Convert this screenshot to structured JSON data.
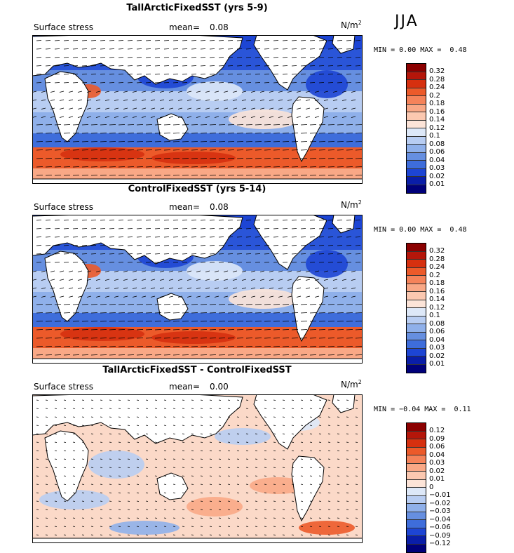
{
  "season": "JJA",
  "panels": [
    {
      "title": "TallArcticFixedSST (yrs 5-9)",
      "field": "Surface stress",
      "mean_label": "mean=",
      "mean_value": "0.08",
      "units": "N/m",
      "units_exp": "2",
      "min_label": "MIN =",
      "min_value": "0.00",
      "max_label": "MAX =",
      "max_value": "0.48",
      "colorbar": [
        "0.32",
        "0.28",
        "0.24",
        "0.2",
        "0.18",
        "0.16",
        "0.14",
        "0.12",
        "0.1",
        "0.08",
        "0.06",
        "0.04",
        "0.03",
        "0.02",
        "0.01"
      ],
      "colors": [
        "#8b0000",
        "#b5160a",
        "#d6300f",
        "#ec5a2a",
        "#f5835a",
        "#f9a886",
        "#fbc8b0",
        "#fce4d8",
        "#dde8f8",
        "#b8cdf2",
        "#8fb0ea",
        "#668fe0",
        "#3e6ddb",
        "#1d45d4",
        "#0a1ea8",
        "#00007a"
      ]
    },
    {
      "title": "ControlFixedSST (yrs 5-14)",
      "field": "Surface stress",
      "mean_label": "mean=",
      "mean_value": "0.08",
      "units": "N/m",
      "units_exp": "2",
      "min_label": "MIN =",
      "min_value": "0.00",
      "max_label": "MAX =",
      "max_value": "0.48",
      "colorbar": [
        "0.32",
        "0.28",
        "0.24",
        "0.2",
        "0.18",
        "0.16",
        "0.14",
        "0.12",
        "0.1",
        "0.08",
        "0.06",
        "0.04",
        "0.03",
        "0.02",
        "0.01"
      ],
      "colors": [
        "#8b0000",
        "#b5160a",
        "#d6300f",
        "#ec5a2a",
        "#f5835a",
        "#f9a886",
        "#fbc8b0",
        "#fce4d8",
        "#dde8f8",
        "#b8cdf2",
        "#8fb0ea",
        "#668fe0",
        "#3e6ddb",
        "#1d45d4",
        "#0a1ea8",
        "#00007a"
      ]
    },
    {
      "title": "TallArcticFixedSST - ControlFixedSST",
      "field": "Surface stress",
      "mean_label": "mean=",
      "mean_value": "0.00",
      "units": "N/m",
      "units_exp": "2",
      "min_label": "MIN =",
      "min_value": "−0.04",
      "max_label": "MAX =",
      "max_value": "0.11",
      "colorbar": [
        "0.12",
        "0.09",
        "0.06",
        "0.04",
        "0.03",
        "0.02",
        "0.01",
        "0",
        "−0.01",
        "−0.02",
        "−0.03",
        "−0.04",
        "−0.06",
        "−0.09",
        "−0.12"
      ],
      "colors": [
        "#8b0000",
        "#b5160a",
        "#d6300f",
        "#ec5a2a",
        "#f5835a",
        "#f9a886",
        "#fbc8b0",
        "#fce4d8",
        "#dde8f8",
        "#b8cdf2",
        "#8fb0ea",
        "#668fe0",
        "#3e6ddb",
        "#1d45d4",
        "#0a1ea8",
        "#00007a"
      ]
    }
  ]
}
